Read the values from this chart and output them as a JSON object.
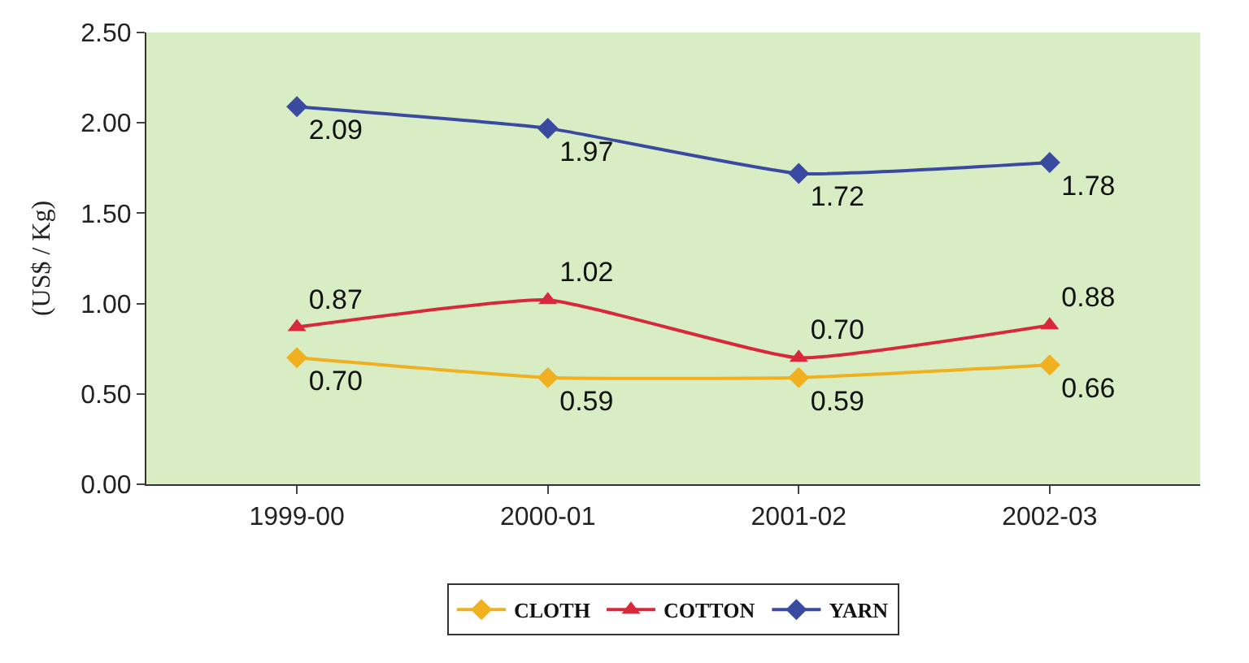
{
  "chart_data": {
    "type": "line",
    "ylabel": "(US$ / Kg)",
    "categories": [
      "1999-00",
      "2000-01",
      "2001-02",
      "2002-03"
    ],
    "series": [
      {
        "name": "CLOTH",
        "color": "#f0b020",
        "marker": "diamond",
        "values": [
          0.7,
          0.59,
          0.59,
          0.66
        ],
        "value_labels": [
          "0.70",
          "0.59",
          "0.59",
          "0.66"
        ]
      },
      {
        "name": "COTTON",
        "color": "#d8283c",
        "marker": "triangle",
        "values": [
          0.87,
          1.02,
          0.7,
          0.88
        ],
        "value_labels": [
          "0.87",
          "1.02",
          "0.70",
          "0.88"
        ]
      },
      {
        "name": "YARN",
        "color": "#3a4aa0",
        "marker": "diamond",
        "values": [
          2.09,
          1.97,
          1.72,
          1.78
        ],
        "value_labels": [
          "2.09",
          "1.97",
          "1.72",
          "1.78"
        ]
      }
    ],
    "ylim": [
      0,
      2.5
    ],
    "yticks": [
      {
        "value": 0,
        "label": "0.00"
      },
      {
        "value": 0.5,
        "label": "0.50"
      },
      {
        "value": 1,
        "label": "1.00"
      },
      {
        "value": 1.5,
        "label": "1.50"
      },
      {
        "value": 2,
        "label": "2.00"
      },
      {
        "value": 2.5,
        "label": "2.50"
      }
    ],
    "grid": false,
    "legend": "bottom"
  }
}
